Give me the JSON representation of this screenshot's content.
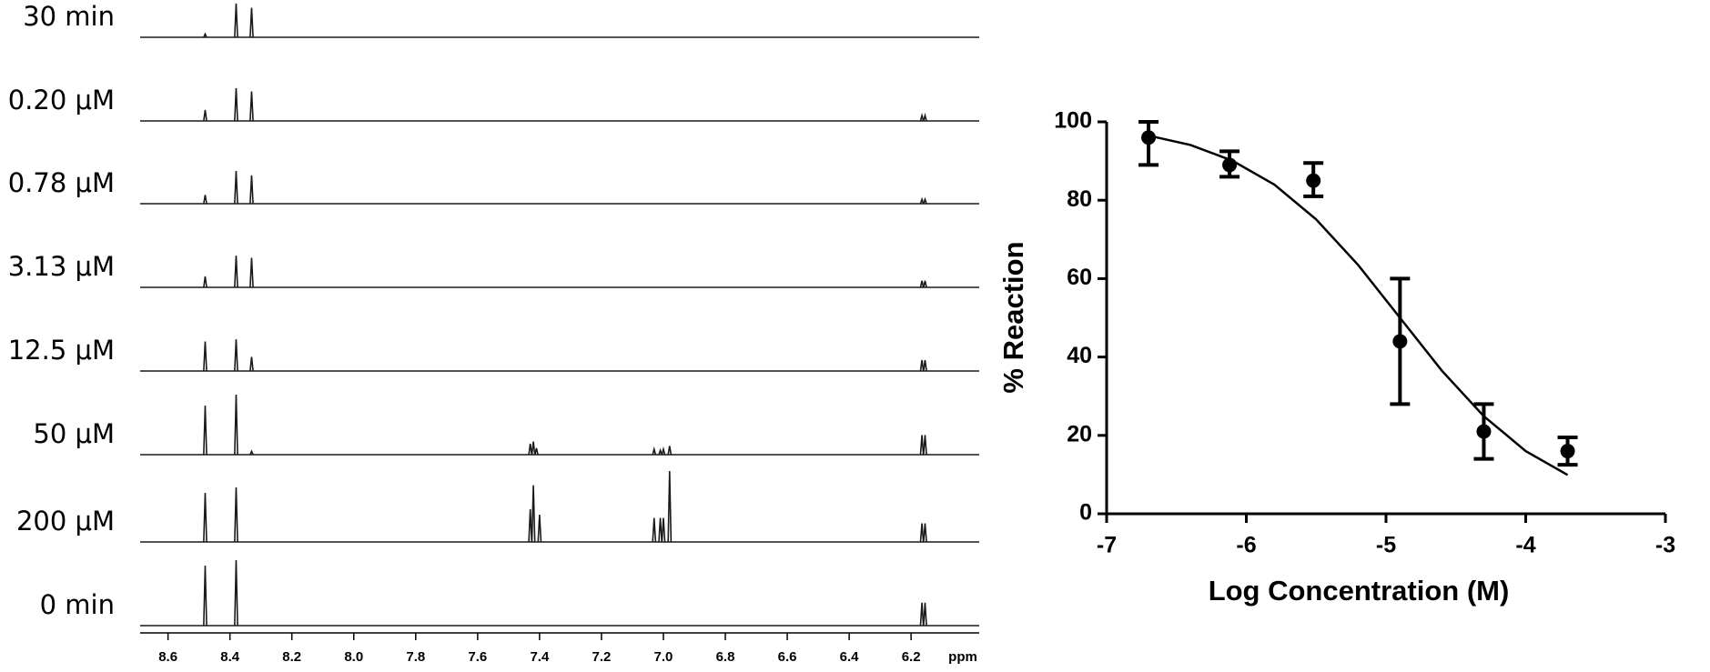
{
  "chart_data": [
    {
      "type": "spectra",
      "x_label": "ppm",
      "xlim": [
        8.69,
        5.98
      ],
      "xticks": [
        8.6,
        8.4,
        8.2,
        {
          "value": 8.0,
          "label": "8.0"
        },
        7.8,
        7.6,
        7.4,
        7.2,
        {
          "value": 7.0,
          "label": "7.0"
        },
        6.8,
        6.6,
        6.4,
        6.2
      ],
      "color": "#1a1a1a",
      "series": [
        {
          "name": "30 min",
          "x": [
            8.48,
            8.38,
            8.33
          ],
          "values": [
            3,
            31,
            27
          ]
        },
        {
          "name": "0.20 μM",
          "x": [
            8.48,
            8.38,
            8.33,
            6.165,
            6.155
          ],
          "values": [
            10,
            30,
            27,
            5,
            5
          ]
        },
        {
          "name": "0.78 μM",
          "x": [
            8.48,
            8.38,
            8.33,
            6.165,
            6.155
          ],
          "values": [
            8,
            30,
            26,
            4,
            4
          ]
        },
        {
          "name": "3.13 μM",
          "x": [
            8.48,
            8.38,
            8.33,
            6.165,
            6.155
          ],
          "values": [
            10,
            29,
            27,
            6,
            6
          ]
        },
        {
          "name": "12.5 μM",
          "x": [
            8.48,
            8.38,
            8.33,
            6.165,
            6.155
          ],
          "values": [
            27,
            29,
            13,
            10,
            10
          ]
        },
        {
          "name": "50 μM",
          "x": [
            8.48,
            8.38,
            8.33,
            7.43,
            7.42,
            7.41,
            7.03,
            7.01,
            7.0,
            6.98,
            6.165,
            6.155
          ],
          "values": [
            45,
            55,
            3,
            10,
            12,
            6,
            5,
            4,
            5,
            8,
            18,
            18
          ]
        },
        {
          "name": "200 μM",
          "x": [
            8.48,
            8.38,
            7.43,
            7.42,
            7.4,
            7.03,
            7.01,
            7.0,
            6.98,
            6.165,
            6.155
          ],
          "values": [
            45,
            50,
            30,
            52,
            25,
            22,
            22,
            22,
            65,
            17,
            17
          ]
        },
        {
          "name": "0 min",
          "x": [
            8.48,
            8.38,
            6.165,
            6.155
          ],
          "values": [
            55,
            60,
            21,
            21
          ]
        }
      ]
    },
    {
      "type": "scatter",
      "x_label": "Log Concentration (M)",
      "y_label": "% Reaction",
      "xlim": [
        -7,
        -3
      ],
      "xticks": [
        -7,
        -6,
        -5,
        -4,
        -3
      ],
      "ylim": [
        0,
        100
      ],
      "yticks": [
        0,
        20,
        40,
        60,
        80,
        100
      ],
      "color": "#000000",
      "x": [
        -6.7,
        -6.12,
        -5.52,
        -4.9,
        -4.3,
        -3.7
      ],
      "values": [
        96,
        89,
        85,
        44,
        21,
        16
      ],
      "error_minus": [
        7,
        3,
        4,
        16,
        7,
        3.5
      ],
      "error_plus": [
        4,
        3.5,
        4.5,
        16,
        7,
        3.5
      ],
      "fit": {
        "x": [
          -6.7,
          -6.4,
          -6.1,
          -5.8,
          -5.5,
          -5.2,
          -4.9,
          -4.6,
          -4.3,
          -4.0,
          -3.7
        ],
        "values": [
          96.5,
          94.1,
          90.1,
          84.0,
          75.1,
          63.5,
          50,
          36.5,
          24.9,
          16.0,
          9.9
        ]
      }
    }
  ]
}
